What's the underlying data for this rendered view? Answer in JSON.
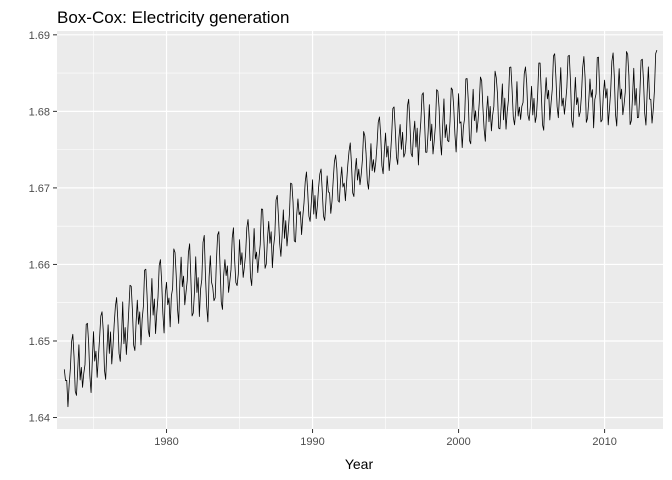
{
  "chart_data": {
    "type": "line",
    "title": "Box-Cox: Electricity generation",
    "xlabel": "Year",
    "ylabel": "",
    "x_range": [
      1972.5,
      2014.0
    ],
    "ylim": [
      1.6385,
      1.6905
    ],
    "x_ticks": [
      1980,
      1990,
      2000,
      2010
    ],
    "y_ticks": [
      1.64,
      1.65,
      1.66,
      1.67,
      1.68,
      1.69
    ],
    "x_tick_labels": [
      "1980",
      "1990",
      "2000",
      "2010"
    ],
    "y_tick_labels": [
      "1.64",
      "1.65",
      "1.66",
      "1.67",
      "1.68",
      "1.69"
    ],
    "grid": true,
    "legend": "none",
    "series_sampling": {
      "start_year": 1973.0,
      "step_years": 0.08333,
      "count": 488
    },
    "yearly_envelope": {
      "year": [
        1973,
        1975,
        1977,
        1979,
        1981,
        1983,
        1985,
        1987,
        1989,
        1991,
        1993,
        1995,
        1997,
        1999,
        2001,
        2003,
        2005,
        2007,
        2009,
        2011,
        2013
      ],
      "low": [
        1.6405,
        1.6435,
        1.647,
        1.65,
        1.6525,
        1.6525,
        1.656,
        1.6585,
        1.663,
        1.666,
        1.669,
        1.671,
        1.6725,
        1.674,
        1.6755,
        1.6765,
        1.6772,
        1.678,
        1.6778,
        1.6772,
        1.677
      ],
      "high": [
        1.65,
        1.653,
        1.657,
        1.66,
        1.663,
        1.664,
        1.665,
        1.668,
        1.6715,
        1.6735,
        1.6765,
        1.68,
        1.682,
        1.6835,
        1.6845,
        1.6855,
        1.6865,
        1.6878,
        1.687,
        1.6878,
        1.688
      ]
    },
    "colors": {
      "panel_background": "#ebebeb",
      "grid_major": "#ffffff",
      "line": "#000000"
    }
  }
}
